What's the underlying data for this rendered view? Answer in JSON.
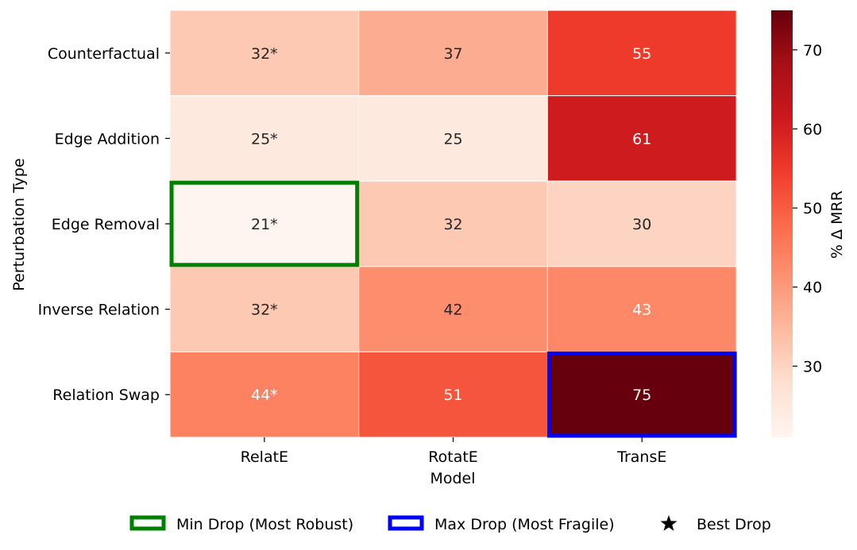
{
  "chart_data": {
    "type": "heatmap",
    "xlabel": "Model",
    "ylabel": "Perturbation Type",
    "x_categories": [
      "RelatE",
      "RotatE",
      "TransE"
    ],
    "y_categories": [
      "Counterfactual",
      "Edge Addition",
      "Edge Removal",
      "Inverse Relation",
      "Relation Swap"
    ],
    "values": [
      [
        32,
        37,
        55
      ],
      [
        25,
        25,
        61
      ],
      [
        21,
        32,
        30
      ],
      [
        32,
        42,
        43
      ],
      [
        44,
        51,
        75
      ]
    ],
    "cell_labels": [
      [
        "32*",
        "37",
        "55"
      ],
      [
        "25*",
        "25",
        "61"
      ],
      [
        "21*",
        "32",
        "30"
      ],
      [
        "32*",
        "42",
        "43"
      ],
      [
        "44*",
        "51",
        "75"
      ]
    ],
    "colorbar": {
      "label": "% Δ MRR",
      "range": [
        21,
        75
      ],
      "ticks": [
        30,
        40,
        50,
        60,
        70
      ],
      "colormap": "Reds"
    },
    "highlights": [
      {
        "row": 2,
        "col": 0,
        "color": "#008000",
        "meaning": "min"
      },
      {
        "row": 4,
        "col": 2,
        "color": "#0000ff",
        "meaning": "max"
      }
    ],
    "legend": {
      "placement": "bottom",
      "items": [
        {
          "label": "Min Drop (Most Robust)",
          "marker": "box",
          "color": "#008000"
        },
        {
          "label": "Max Drop (Most Fragile)",
          "marker": "box",
          "color": "#0000ff"
        },
        {
          "label": "Best Drop",
          "marker": "star",
          "color": "#000000"
        }
      ]
    }
  }
}
